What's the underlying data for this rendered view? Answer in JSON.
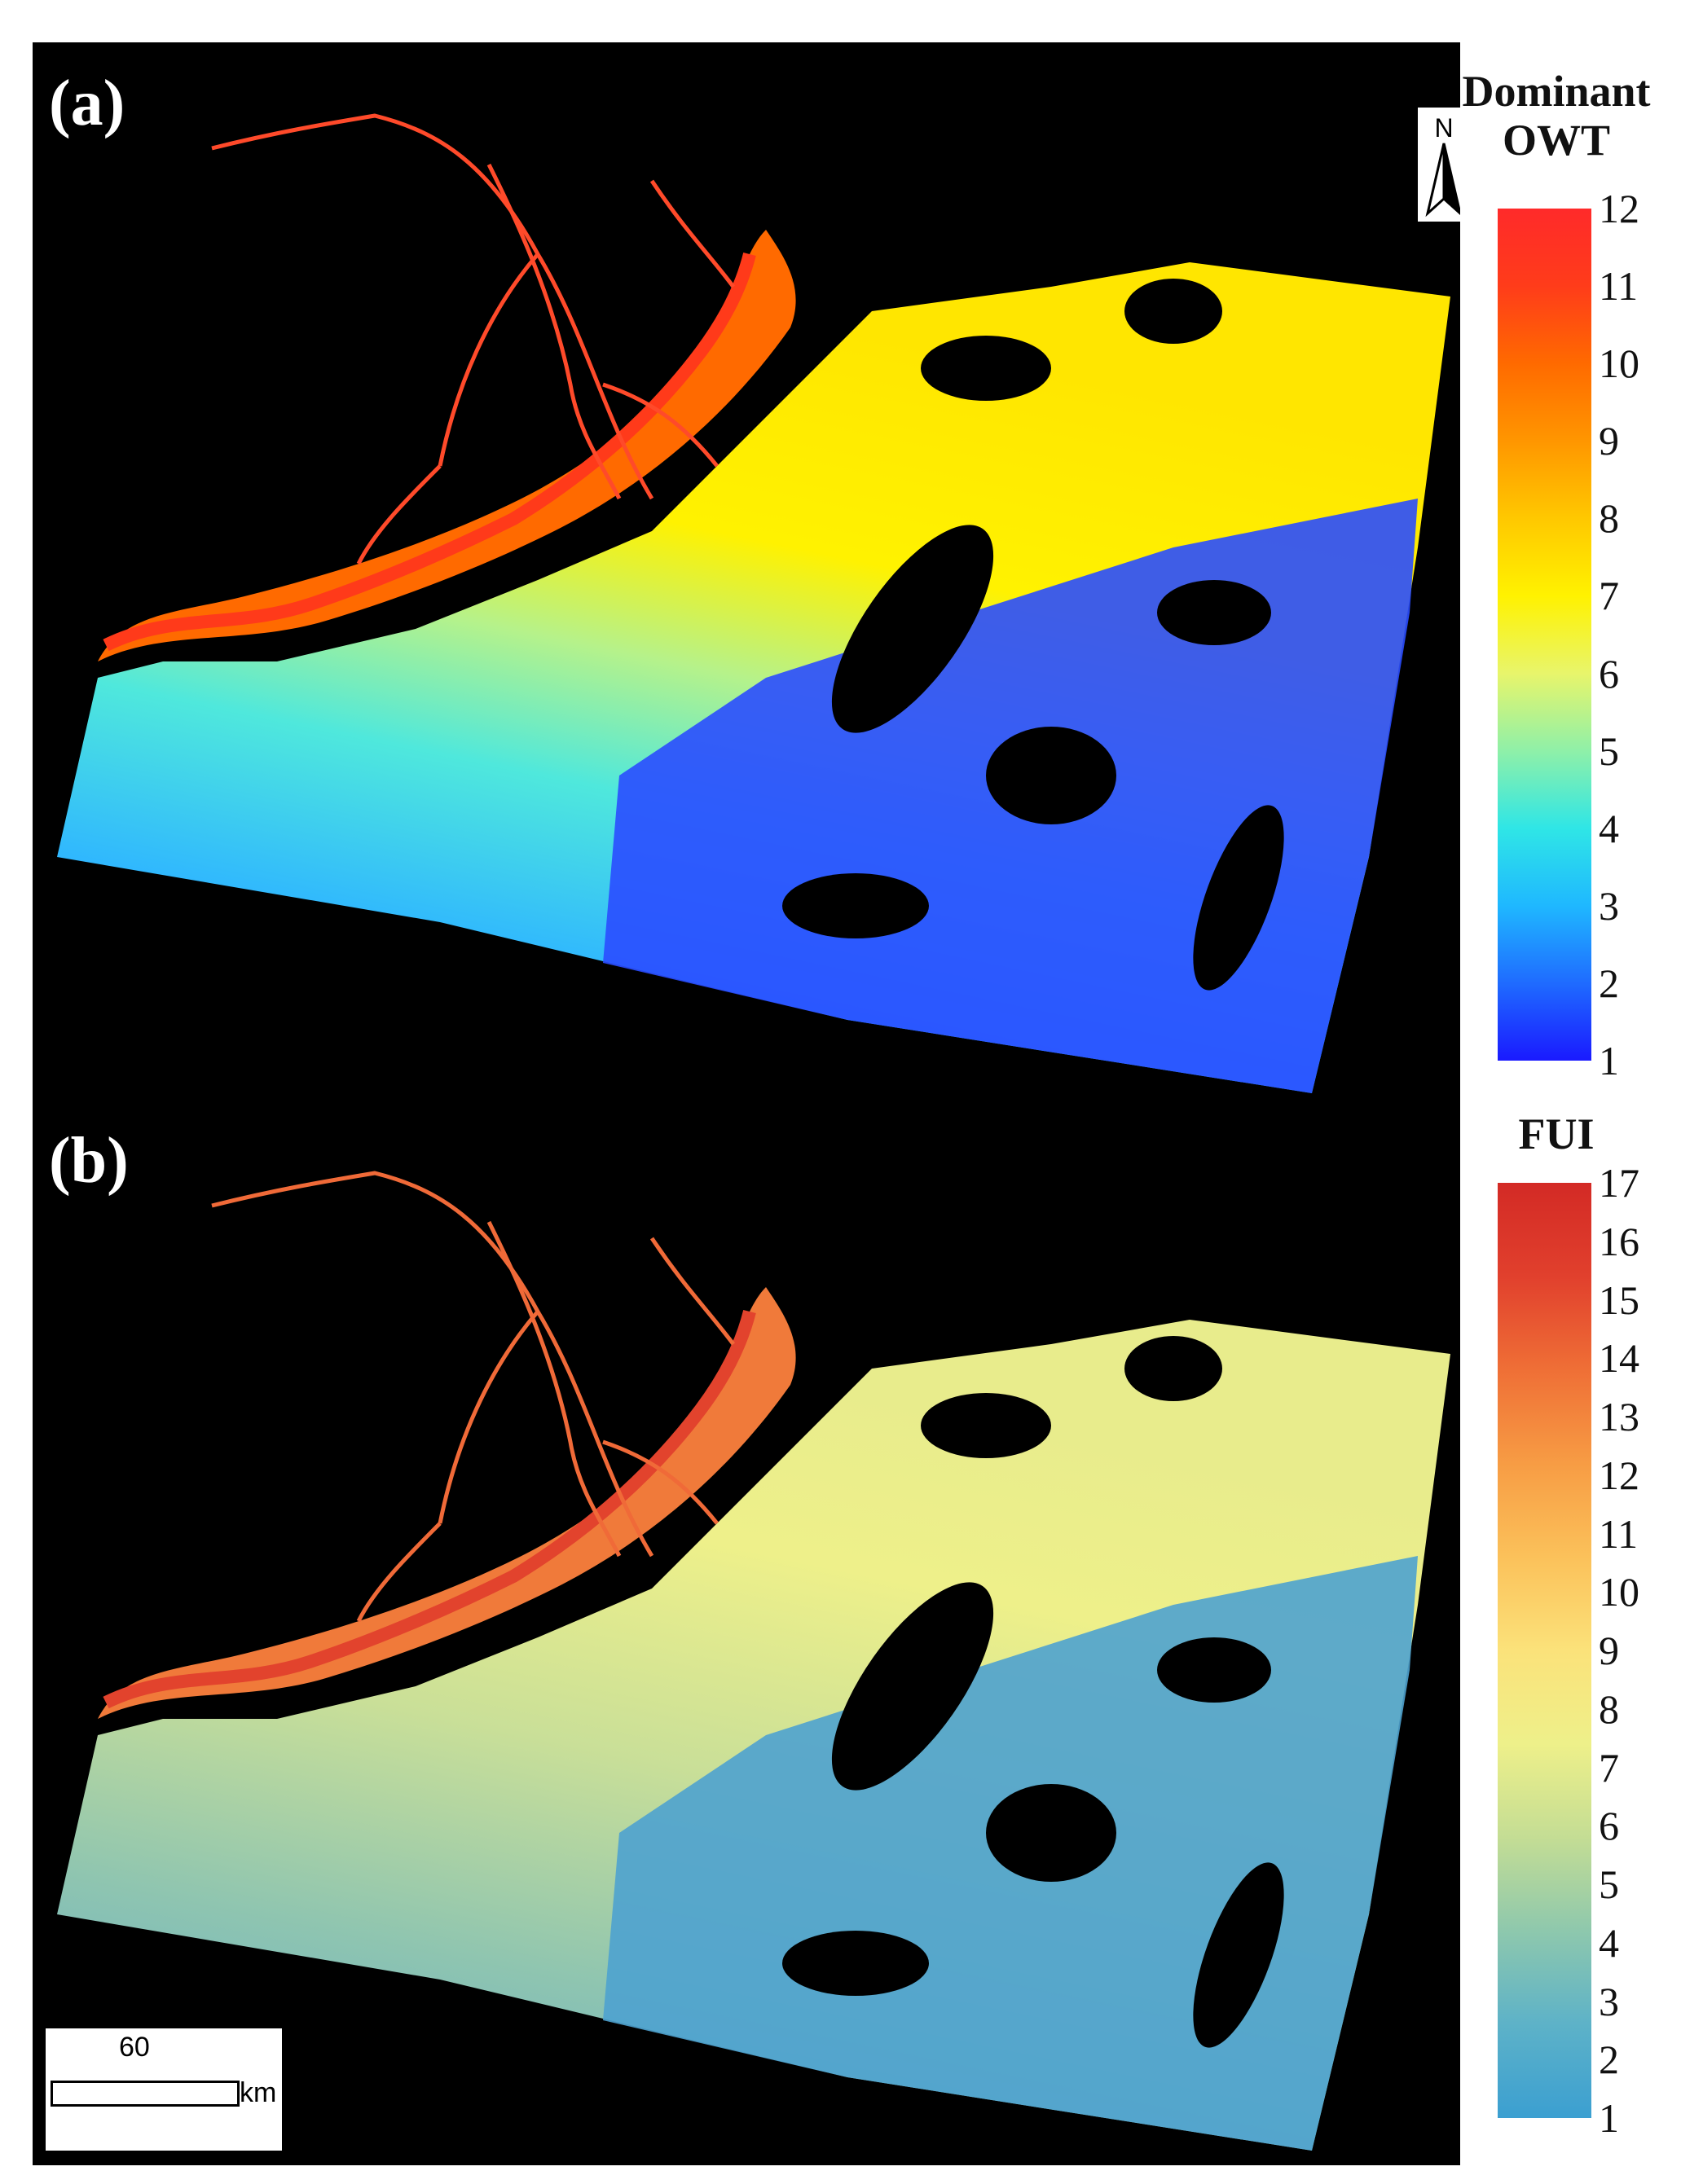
{
  "panels": [
    {
      "id": "a",
      "label": "(a)",
      "legend_title_line1": "Dominant",
      "legend_title_line2": "OWT",
      "scale": {
        "min": 1,
        "max": 12
      },
      "ticks": [
        "12",
        "11",
        "10",
        "9",
        "8",
        "7",
        "6",
        "5",
        "4",
        "3",
        "2",
        "1"
      ],
      "colormap": [
        "#1a1aff",
        "#1f6bff",
        "#1fb8ff",
        "#2fe6e6",
        "#8ff0a8",
        "#e8f56b",
        "#fff200",
        "#ffc800",
        "#ff9600",
        "#ff6a00",
        "#ff3c1a",
        "#ff2a2a"
      ]
    },
    {
      "id": "b",
      "label": "(b)",
      "legend_title": "FUI",
      "scale": {
        "min": 1,
        "max": 17
      },
      "ticks": [
        "17",
        "16",
        "15",
        "14",
        "13",
        "12",
        "11",
        "10",
        "9",
        "8",
        "7",
        "6",
        "5",
        "4",
        "3",
        "2",
        "1"
      ],
      "colormap": [
        "#3b9fd1",
        "#5db2c8",
        "#8ec8ad",
        "#c4dd94",
        "#eef08a",
        "#fbe27a",
        "#fbc15a",
        "#f79c44",
        "#ef6f36",
        "#e1402d",
        "#d32a25"
      ]
    }
  ],
  "north_arrow_label": "N",
  "scale_bar": {
    "value": "60",
    "unit": "km"
  }
}
